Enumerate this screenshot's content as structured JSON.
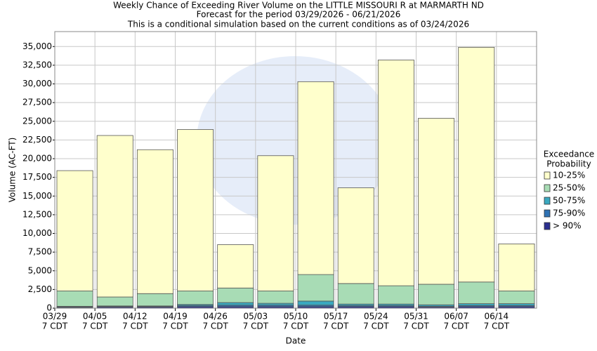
{
  "chart_data": {
    "type": "stacked_bar",
    "title": "Weekly Chance of Exceeding River Volume on the LITTLE MISSOURI R at MARMARTH ND",
    "subtitle": [
      "Forecast for the period 03/29/2026 - 06/21/2026",
      "This is a conditional simulation based on the current conditions as of 03/24/2026"
    ],
    "x_label": "Date",
    "y_label": "Volume (AC-FT)",
    "legend_title": [
      "Exceedance",
      "Probability"
    ],
    "categories": [
      [
        "03/29",
        "7 CDT"
      ],
      [
        "04/05",
        "7 CDT"
      ],
      [
        "04/12",
        "7 CDT"
      ],
      [
        "04/19",
        "7 CDT"
      ],
      [
        "04/26",
        "7 CDT"
      ],
      [
        "05/03",
        "7 CDT"
      ],
      [
        "05/10",
        "7 CDT"
      ],
      [
        "05/17",
        "7 CDT"
      ],
      [
        "05/24",
        "7 CDT"
      ],
      [
        "05/31",
        "7 CDT"
      ],
      [
        "06/07",
        "7 CDT"
      ],
      [
        "06/14",
        "7 CDT"
      ]
    ],
    "series": [
      {
        "name": "> 90%",
        "color": "#2b2f8f",
        "values": [
          100,
          150,
          150,
          200,
          200,
          200,
          200,
          200,
          200,
          150,
          200,
          200
        ]
      },
      {
        "name": "75-90%",
        "color": "#2f72b4",
        "values": [
          100,
          100,
          100,
          150,
          200,
          200,
          200,
          150,
          150,
          100,
          150,
          150
        ]
      },
      {
        "name": "50-75%",
        "color": "#3aa9c0",
        "values": [
          50,
          50,
          50,
          150,
          350,
          250,
          550,
          200,
          200,
          200,
          250,
          250
        ]
      },
      {
        "name": "25-50%",
        "color": "#a8dcb5",
        "values": [
          2050,
          1200,
          1650,
          1800,
          1950,
          1650,
          3550,
          2750,
          2450,
          2750,
          2900,
          1700
        ]
      },
      {
        "name": "10-25%",
        "color": "#ffffcc",
        "values": [
          16100,
          21600,
          19250,
          21600,
          5800,
          18100,
          25800,
          12800,
          30200,
          22200,
          31400,
          6300
        ]
      }
    ],
    "ylim": [
      0,
      37000
    ],
    "yticks": [
      0,
      {
        "value": 2500,
        "label": "2,500"
      },
      {
        "value": 5000,
        "label": "5,000"
      },
      {
        "value": 7500,
        "label": "7,500"
      },
      {
        "value": 10000,
        "label": "10,000"
      },
      {
        "value": 12500,
        "label": "12,500"
      },
      {
        "value": 15000,
        "label": "15,000"
      },
      {
        "value": 17500,
        "label": "17,500"
      },
      {
        "value": 20000,
        "label": "20,000"
      },
      {
        "value": 22500,
        "label": "22,500"
      },
      {
        "value": 25000,
        "label": "25,000"
      },
      {
        "value": 27500,
        "label": "27,500"
      },
      {
        "value": 30000,
        "label": "30,000"
      },
      {
        "value": 32500,
        "label": "32,500"
      },
      {
        "value": 35000,
        "label": "35,000"
      }
    ],
    "grid": true,
    "legend": "right"
  }
}
